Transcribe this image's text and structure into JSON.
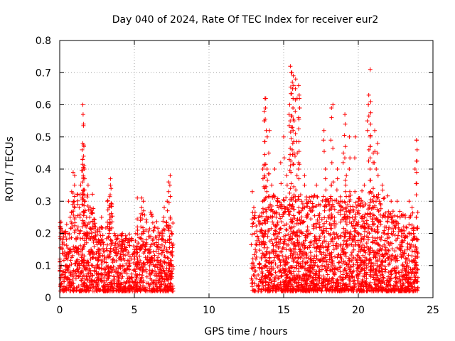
{
  "chart_data": {
    "type": "scatter",
    "title": "Day 040 of 2024, Rate Of TEC Index for receiver eur2",
    "xlabel": "GPS time / hours",
    "ylabel": "ROTI / TECUs",
    "xlim": [
      0,
      25
    ],
    "ylim": [
      0,
      0.8
    ],
    "xticks": [
      0,
      5,
      10,
      15,
      20,
      25
    ],
    "yticks": [
      0,
      0.1,
      0.2,
      0.3,
      0.4,
      0.5,
      0.6,
      0.7,
      0.8
    ],
    "xtick_labels": [
      "0",
      "5",
      "10",
      "15",
      "20",
      "25"
    ],
    "ytick_labels": [
      "0",
      "0.1",
      "0.2",
      "0.3",
      "0.4",
      "0.5",
      "0.6",
      "0.7",
      "0.8"
    ],
    "grid": true,
    "marker": "+",
    "color": "#ff0000",
    "series": [
      {
        "name": "ROTI",
        "x": [
          0.05,
          0.1,
          0.2,
          0.3,
          0.4,
          0.5,
          0.6,
          0.7,
          0.8,
          0.9,
          1.0,
          1.1,
          1.2,
          1.3,
          1.4,
          1.5,
          1.55,
          1.6,
          1.65,
          1.7,
          1.8,
          1.9,
          2.0,
          2.1,
          2.2,
          2.4,
          2.6,
          2.8,
          3.0,
          3.2,
          3.3,
          3.4,
          3.6,
          3.8,
          4.0,
          4.2,
          4.4,
          4.6,
          4.8,
          5.0,
          5.2,
          5.4,
          5.6,
          5.8,
          6.0,
          6.2,
          6.4,
          6.6,
          6.8,
          7.0,
          7.2,
          7.3,
          7.4,
          7.5,
          12.9,
          13.0,
          13.1,
          13.6,
          13.7,
          13.8,
          13.9,
          14.0,
          14.2,
          14.4,
          14.6,
          14.8,
          15.0,
          15.2,
          15.4,
          15.5,
          15.6,
          15.7,
          15.8,
          15.9,
          16.0,
          16.2,
          16.4,
          16.6,
          16.8,
          17.0,
          17.2,
          17.4,
          17.6,
          17.8,
          18.0,
          18.2,
          18.4,
          18.6,
          18.8,
          19.0,
          19.2,
          19.4,
          19.6,
          19.8,
          20.0,
          20.2,
          20.4,
          20.6,
          20.7,
          20.8,
          21.0,
          21.2,
          21.4,
          21.6,
          21.8,
          22.0,
          22.2,
          22.4,
          22.6,
          22.8,
          23.0,
          23.2,
          23.4,
          23.6,
          23.8,
          23.9,
          1.55,
          1.6,
          1.62,
          0.9,
          1.0,
          2.05,
          3.4,
          5.2,
          5.5,
          6.1,
          7.4,
          13.7,
          13.75,
          14.05,
          15.45,
          15.55,
          15.65,
          16.0,
          16.05,
          17.7,
          18.2,
          18.3,
          19.1,
          19.4,
          20.8,
          21.1,
          21.3,
          23.9
        ],
        "y": [
          0.22,
          0.1,
          0.18,
          0.05,
          0.2,
          0.12,
          0.3,
          0.25,
          0.33,
          0.15,
          0.28,
          0.18,
          0.32,
          0.2,
          0.35,
          0.46,
          0.48,
          0.44,
          0.4,
          0.3,
          0.25,
          0.35,
          0.2,
          0.15,
          0.1,
          0.22,
          0.18,
          0.25,
          0.12,
          0.3,
          0.2,
          0.35,
          0.15,
          0.18,
          0.1,
          0.2,
          0.15,
          0.18,
          0.12,
          0.15,
          0.22,
          0.25,
          0.3,
          0.18,
          0.14,
          0.12,
          0.1,
          0.18,
          0.2,
          0.28,
          0.3,
          0.36,
          0.25,
          0.2,
          0.33,
          0.28,
          0.15,
          0.4,
          0.55,
          0.62,
          0.5,
          0.45,
          0.35,
          0.4,
          0.3,
          0.42,
          0.5,
          0.38,
          0.6,
          0.7,
          0.65,
          0.55,
          0.68,
          0.62,
          0.4,
          0.3,
          0.38,
          0.22,
          0.3,
          0.28,
          0.35,
          0.25,
          0.2,
          0.4,
          0.3,
          0.35,
          0.25,
          0.4,
          0.3,
          0.45,
          0.38,
          0.3,
          0.25,
          0.5,
          0.3,
          0.25,
          0.35,
          0.55,
          0.63,
          0.5,
          0.45,
          0.4,
          0.3,
          0.35,
          0.25,
          0.2,
          0.3,
          0.22,
          0.3,
          0.25,
          0.2,
          0.22,
          0.3,
          0.28,
          0.4,
          0.49,
          0.6,
          0.54,
          0.47,
          0.39,
          0.38,
          0.28,
          0.37,
          0.31,
          0.31,
          0.19,
          0.38,
          0.58,
          0.62,
          0.52,
          0.72,
          0.7,
          0.69,
          0.66,
          0.62,
          0.52,
          0.59,
          0.6,
          0.57,
          0.5,
          0.71,
          0.52,
          0.48,
          0.49
        ]
      }
    ],
    "data_gap": {
      "from": 7.6,
      "to": 12.8
    }
  }
}
